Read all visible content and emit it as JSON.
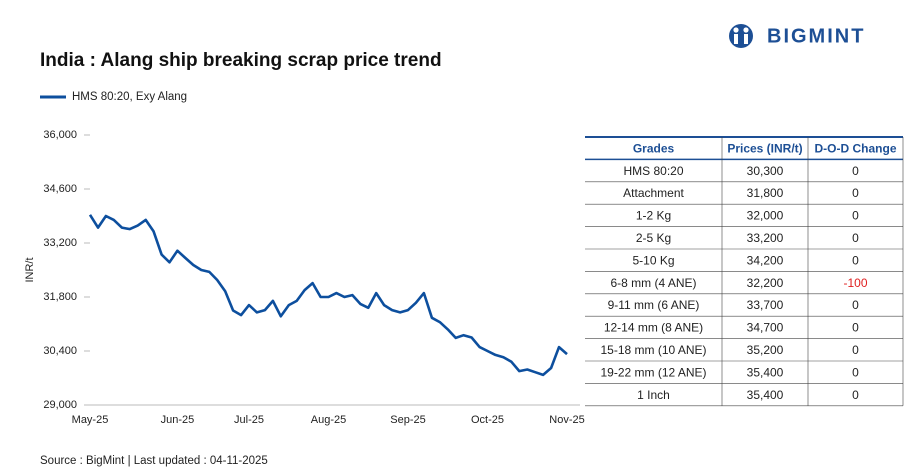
{
  "brand": "BIGMINT",
  "chart_data": {
    "type": "line",
    "title": "India : Alang ship breaking scrap price trend",
    "ylabel": "INR/t",
    "categories": [
      "May-25",
      null,
      null,
      null,
      null,
      null,
      null,
      null,
      null,
      null,
      null,
      "Jun-25",
      null,
      null,
      null,
      null,
      null,
      null,
      null,
      null,
      "Jul-25",
      null,
      null,
      null,
      null,
      null,
      null,
      null,
      null,
      null,
      "Aug-25",
      null,
      null,
      null,
      null,
      null,
      null,
      null,
      null,
      null,
      "Sep-25",
      null,
      null,
      null,
      null,
      null,
      null,
      null,
      null,
      null,
      "Oct-25",
      null,
      null,
      null,
      null,
      null,
      null,
      null,
      null,
      null,
      "Nov-25"
    ],
    "series": [
      {
        "name": "HMS 80:20, Exy Alang",
        "color": "#0d4f9e",
        "values": [
          33930,
          33600,
          33900,
          33800,
          33600,
          33560,
          33650,
          33800,
          33500,
          32900,
          32700,
          33000,
          32810,
          32630,
          32500,
          32450,
          32240,
          31950,
          31450,
          31330,
          31590,
          31400,
          31460,
          31700,
          31300,
          31590,
          31700,
          31980,
          32160,
          31800,
          31800,
          31900,
          31800,
          31850,
          31620,
          31520,
          31900,
          31590,
          31460,
          31400,
          31460,
          31650,
          31900,
          31260,
          31150,
          30960,
          30740,
          30810,
          30750,
          30500,
          30400,
          30300,
          30240,
          30120,
          29880,
          29920,
          29850,
          29780,
          29960,
          30500,
          30320
        ]
      }
    ],
    "ylim": [
      29000,
      36000
    ],
    "yticks": [
      {
        "value": 29000,
        "label": "29,000"
      },
      {
        "value": 30400,
        "label": "30,400"
      },
      {
        "value": 31800,
        "label": "31,800"
      },
      {
        "value": 33200,
        "label": "33,200"
      },
      {
        "value": 34600,
        "label": "34,600"
      },
      {
        "value": 36000,
        "label": "36,000"
      }
    ],
    "grid": false
  },
  "table": {
    "headers": [
      "Grades",
      "Prices (INR/t)",
      "D-O-D Change"
    ],
    "rows": [
      [
        "HMS 80:20",
        "30,300",
        "0"
      ],
      [
        "Attachment",
        "31,800",
        "0"
      ],
      [
        "1-2 Kg",
        "32,000",
        "0"
      ],
      [
        "2-5 Kg",
        "33,200",
        "0"
      ],
      [
        "5-10 Kg",
        "34,200",
        "0"
      ],
      [
        "6-8 mm (4 ANE)",
        "32,200",
        "-100"
      ],
      [
        "9-11 mm (6 ANE)",
        "33,700",
        "0"
      ],
      [
        "12-14 mm (8 ANE)",
        "34,700",
        "0"
      ],
      [
        "15-18 mm (10 ANE)",
        "35,200",
        "0"
      ],
      [
        "19-22 mm (12 ANE)",
        "35,400",
        "0"
      ],
      [
        "1 Inch",
        "35,400",
        "0"
      ]
    ]
  },
  "source": "Source : BigMint | Last updated : 04-11-2025"
}
